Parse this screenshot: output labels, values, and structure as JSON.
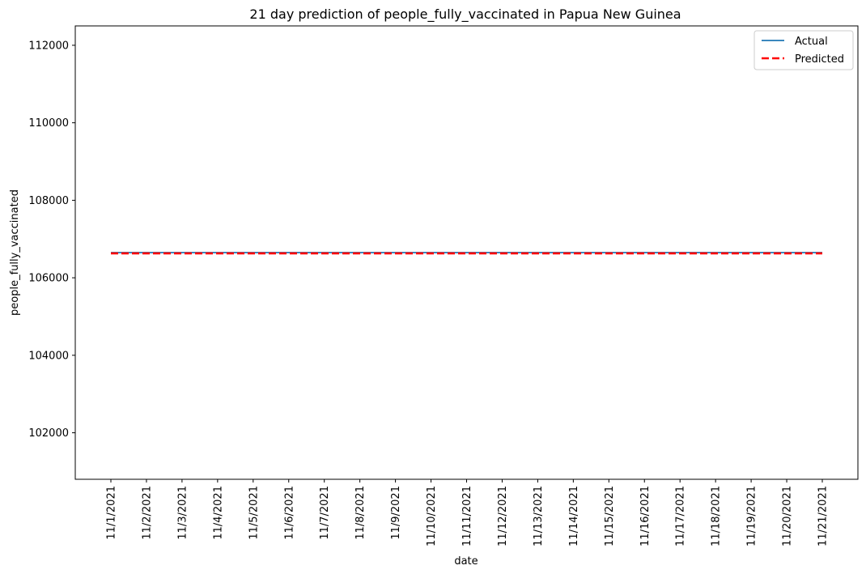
{
  "chart_data": {
    "type": "line",
    "title": "21 day prediction of people_fully_vaccinated in Papua New Guinea",
    "xlabel": "date",
    "ylabel": "people_fully_vaccinated",
    "x": [
      "11/1/2021",
      "11/2/2021",
      "11/3/2021",
      "11/4/2021",
      "11/5/2021",
      "11/6/2021",
      "11/7/2021",
      "11/8/2021",
      "11/9/2021",
      "11/10/2021",
      "11/11/2021",
      "11/12/2021",
      "11/13/2021",
      "11/14/2021",
      "11/15/2021",
      "11/16/2021",
      "11/17/2021",
      "11/18/2021",
      "11/19/2021",
      "11/20/2021",
      "11/21/2021"
    ],
    "series": [
      {
        "name": "Actual",
        "color": "#1f77b4",
        "line_style": "solid",
        "values": [
          106650,
          106650,
          106650,
          106650,
          106650,
          106650,
          106650,
          106650,
          106650,
          106650,
          106650,
          106650,
          106650,
          106650,
          106650,
          106650,
          106650,
          106650,
          106650,
          106650,
          106650
        ]
      },
      {
        "name": "Predicted",
        "color": "#ff0000",
        "line_style": "dashed",
        "values": [
          106630,
          106630,
          106630,
          106630,
          106630,
          106630,
          106630,
          106630,
          106630,
          106630,
          106630,
          106630,
          106630,
          106630,
          106630,
          106630,
          106630,
          106630,
          106630,
          106630,
          106630
        ]
      }
    ],
    "ylim": [
      100800,
      112500
    ],
    "yticks": [
      102000,
      104000,
      106000,
      108000,
      110000,
      112000
    ],
    "ytick_labels": [
      "102000",
      "104000",
      "106000",
      "108000",
      "110000",
      "112000"
    ],
    "grid": false,
    "legend_position": "upper right"
  }
}
